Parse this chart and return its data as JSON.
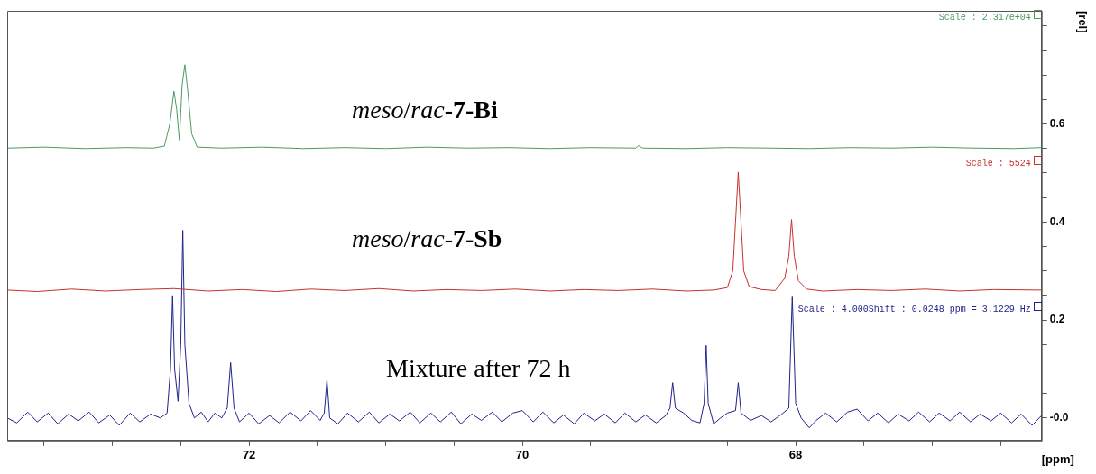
{
  "chart_data": {
    "type": "line",
    "xlabel": "[ppm]",
    "ylabel": "[rel]",
    "xlim": [
      73.77,
      66.2
    ],
    "ylim": [
      -0.046,
      0.831
    ],
    "xticks": [
      {
        "value": 73.5,
        "label": null
      },
      {
        "value": 73,
        "label": null
      },
      {
        "value": 72.5,
        "label": null
      },
      72,
      {
        "value": 71.5,
        "label": null
      },
      {
        "value": 71,
        "label": null
      },
      {
        "value": 70.5,
        "label": null
      },
      70,
      {
        "value": 69.5,
        "label": null
      },
      {
        "value": 69,
        "label": null
      },
      {
        "value": 68.5,
        "label": null
      },
      68,
      {
        "value": 67.5,
        "label": null
      },
      {
        "value": 67,
        "label": null
      },
      {
        "value": 66.5,
        "label": null
      }
    ],
    "yticks": [
      {
        "value": 0,
        "label": "-0.0"
      },
      {
        "value": 0.05,
        "label": null
      },
      {
        "value": 0.1,
        "label": null
      },
      {
        "value": 0.15,
        "label": null
      },
      {
        "value": 0.2,
        "label": "0.2"
      },
      {
        "value": 0.25,
        "label": null
      },
      {
        "value": 0.3,
        "label": null
      },
      {
        "value": 0.35,
        "label": null
      },
      {
        "value": 0.4,
        "label": "0.4"
      },
      {
        "value": 0.45,
        "label": null
      },
      {
        "value": 0.5,
        "label": null
      },
      {
        "value": 0.55,
        "label": null
      },
      {
        "value": 0.6,
        "label": "0.6"
      },
      {
        "value": 0.65,
        "label": null
      },
      {
        "value": 0.7,
        "label": null
      },
      {
        "value": 0.75,
        "label": null
      },
      {
        "value": 0.8,
        "label": null
      }
    ],
    "grid": false,
    "legend": false,
    "marker": "none",
    "line_style": "solid",
    "annotations": [
      "Scale : 2.317e+04",
      "Scale : 5524",
      "Scale : 4.000Shift : 0.0248 ppm = 3.1229 Hz"
    ],
    "series": [
      {
        "name": "meso/rac-7-Bi",
        "color": "#4e9a5e",
        "x": [
          73.77,
          73.5,
          73.2,
          72.9,
          72.7,
          72.62,
          72.58,
          72.55,
          72.53,
          72.51,
          72.49,
          72.47,
          72.45,
          72.42,
          72.38,
          72.2,
          71.9,
          71.6,
          71.3,
          71.0,
          70.7,
          70.4,
          70.1,
          69.8,
          69.5,
          69.17,
          69.15,
          69.12,
          68.8,
          68.5,
          68.2,
          67.9,
          67.6,
          67.3,
          67.0,
          66.7,
          66.4,
          66.2
        ],
        "values": [
          0.551,
          0.553,
          0.55,
          0.552,
          0.551,
          0.555,
          0.6,
          0.667,
          0.63,
          0.567,
          0.68,
          0.721,
          0.67,
          0.58,
          0.553,
          0.551,
          0.553,
          0.55,
          0.552,
          0.55,
          0.553,
          0.551,
          0.552,
          0.55,
          0.552,
          0.551,
          0.556,
          0.551,
          0.55,
          0.552,
          0.551,
          0.55,
          0.552,
          0.551,
          0.553,
          0.551,
          0.55,
          0.552
        ]
      },
      {
        "name": "meso/rac-7-Sb",
        "color": "#c8302c",
        "x": [
          73.77,
          73.55,
          73.3,
          73.05,
          72.8,
          72.55,
          72.3,
          72.05,
          71.8,
          71.55,
          71.3,
          71.05,
          70.8,
          70.55,
          70.3,
          70.05,
          69.8,
          69.55,
          69.3,
          69.05,
          68.8,
          68.6,
          68.5,
          68.46,
          68.44,
          68.42,
          68.4,
          68.38,
          68.34,
          68.25,
          68.15,
          68.08,
          68.05,
          68.03,
          68.01,
          67.98,
          67.92,
          67.8,
          67.55,
          67.3,
          67.05,
          66.8,
          66.55,
          66.2
        ],
        "values": [
          0.261,
          0.258,
          0.263,
          0.259,
          0.262,
          0.264,
          0.259,
          0.262,
          0.258,
          0.263,
          0.26,
          0.264,
          0.259,
          0.262,
          0.26,
          0.263,
          0.259,
          0.262,
          0.26,
          0.263,
          0.259,
          0.261,
          0.266,
          0.3,
          0.4,
          0.502,
          0.4,
          0.3,
          0.268,
          0.262,
          0.26,
          0.285,
          0.33,
          0.405,
          0.33,
          0.28,
          0.263,
          0.259,
          0.262,
          0.26,
          0.263,
          0.259,
          0.262,
          0.261
        ]
      },
      {
        "name": "Mixture after 72 h",
        "color": "#22228c",
        "x": [
          73.77,
          73.7,
          73.62,
          73.55,
          73.47,
          73.4,
          73.32,
          73.25,
          73.17,
          73.1,
          73.02,
          72.95,
          72.87,
          72.8,
          72.72,
          72.65,
          72.6,
          72.575,
          72.56,
          72.545,
          72.52,
          72.5,
          72.485,
          72.47,
          72.44,
          72.4,
          72.35,
          72.3,
          72.25,
          72.2,
          72.16,
          72.135,
          72.11,
          72.07,
          72.0,
          71.93,
          71.85,
          71.78,
          71.7,
          71.62,
          71.55,
          71.48,
          71.45,
          71.43,
          71.41,
          71.35,
          71.28,
          71.2,
          71.12,
          71.05,
          70.97,
          70.9,
          70.82,
          70.75,
          70.67,
          70.6,
          70.52,
          70.45,
          70.37,
          70.3,
          70.22,
          70.15,
          70.07,
          70.0,
          69.92,
          69.85,
          69.77,
          69.7,
          69.62,
          69.55,
          69.47,
          69.4,
          69.32,
          69.25,
          69.17,
          69.1,
          69.02,
          68.95,
          68.92,
          68.9,
          68.88,
          68.82,
          68.76,
          68.7,
          68.67,
          68.655,
          68.64,
          68.6,
          68.55,
          68.5,
          68.44,
          68.42,
          68.4,
          68.33,
          68.25,
          68.18,
          68.1,
          68.05,
          68.025,
          68.0,
          67.96,
          67.9,
          67.85,
          67.78,
          67.7,
          67.62,
          67.55,
          67.47,
          67.4,
          67.32,
          67.25,
          67.17,
          67.1,
          67.02,
          66.95,
          66.87,
          66.8,
          66.72,
          66.65,
          66.57,
          66.5,
          66.42,
          66.35,
          66.27,
          66.2
        ],
        "values": [
          0.0,
          -0.01,
          0.012,
          -0.008,
          0.01,
          -0.012,
          0.008,
          -0.006,
          0.012,
          -0.01,
          0.006,
          -0.015,
          0.01,
          -0.008,
          0.008,
          0.0,
          0.01,
          0.1,
          0.25,
          0.1,
          0.034,
          0.15,
          0.383,
          0.15,
          0.03,
          0.0,
          0.012,
          -0.008,
          0.01,
          0.0,
          0.02,
          0.113,
          0.02,
          -0.008,
          0.01,
          -0.012,
          0.005,
          -0.01,
          0.012,
          -0.006,
          0.015,
          -0.005,
          0.01,
          0.078,
          0.0,
          -0.012,
          0.01,
          -0.008,
          0.012,
          -0.01,
          0.008,
          -0.006,
          0.012,
          -0.01,
          0.01,
          -0.008,
          0.012,
          -0.012,
          0.008,
          -0.005,
          0.012,
          -0.008,
          0.01,
          0.015,
          -0.008,
          0.012,
          -0.01,
          0.006,
          -0.012,
          0.01,
          -0.006,
          0.008,
          -0.01,
          0.01,
          -0.008,
          0.006,
          -0.01,
          0.005,
          0.02,
          0.072,
          0.02,
          0.01,
          -0.005,
          -0.01,
          0.03,
          0.148,
          0.03,
          -0.012,
          0.0,
          0.01,
          0.015,
          0.072,
          0.01,
          -0.005,
          0.005,
          -0.008,
          0.008,
          0.02,
          0.247,
          0.03,
          0.0,
          -0.02,
          -0.005,
          0.01,
          -0.008,
          0.012,
          0.018,
          -0.006,
          0.01,
          -0.01,
          0.008,
          -0.006,
          0.012,
          -0.008,
          0.01,
          -0.006,
          0.012,
          -0.008,
          0.008,
          -0.006,
          0.01,
          -0.01,
          0.008,
          -0.015,
          0.005
        ]
      }
    ]
  }
}
